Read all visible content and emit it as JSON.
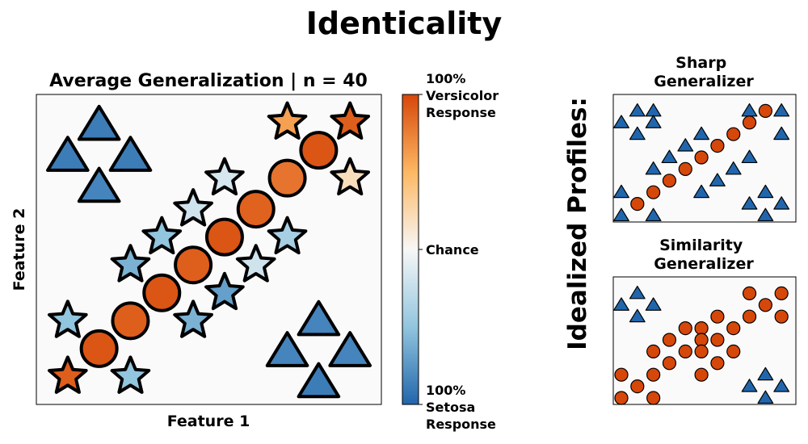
{
  "figure": {
    "title": "Identicality",
    "side_label": "Idealized Profiles:"
  },
  "colorbar": {
    "label_top": [
      "100%",
      "Versicolor",
      "Response"
    ],
    "label_mid": "Chance",
    "label_bottom": [
      "100%",
      "Setosa",
      "Response"
    ],
    "stops": [
      "#2166ac",
      "#92c5de",
      "#f7f7f7",
      "#fdb863",
      "#d6470a"
    ]
  },
  "chart_data": [
    {
      "type": "scatter",
      "title": "Average Generalization | n = 40",
      "xlabel": "Feature 1",
      "ylabel": "Feature 2",
      "xlim": [
        0,
        11
      ],
      "ylim": [
        0,
        10
      ],
      "value_range": [
        0,
        1
      ],
      "points": [
        {
          "shape": "triangle",
          "x": 2.0,
          "y": 9.0,
          "value": 0.06
        },
        {
          "shape": "triangle",
          "x": 1.0,
          "y": 8.0,
          "value": 0.06
        },
        {
          "shape": "triangle",
          "x": 3.0,
          "y": 8.0,
          "value": 0.06
        },
        {
          "shape": "triangle",
          "x": 2.0,
          "y": 7.0,
          "value": 0.08
        },
        {
          "shape": "triangle",
          "x": 9.0,
          "y": 2.7,
          "value": 0.08
        },
        {
          "shape": "triangle",
          "x": 8.0,
          "y": 1.7,
          "value": 0.08
        },
        {
          "shape": "triangle",
          "x": 10.0,
          "y": 1.7,
          "value": 0.08
        },
        {
          "shape": "triangle",
          "x": 9.0,
          "y": 0.7,
          "value": 0.06
        },
        {
          "shape": "circle",
          "x": 2.0,
          "y": 1.8,
          "value": 0.97
        },
        {
          "shape": "circle",
          "x": 3.0,
          "y": 2.7,
          "value": 0.95
        },
        {
          "shape": "circle",
          "x": 4.0,
          "y": 3.6,
          "value": 0.97
        },
        {
          "shape": "circle",
          "x": 5.0,
          "y": 4.5,
          "value": 0.95
        },
        {
          "shape": "circle",
          "x": 6.0,
          "y": 5.4,
          "value": 0.97
        },
        {
          "shape": "circle",
          "x": 7.0,
          "y": 6.3,
          "value": 0.94
        },
        {
          "shape": "circle",
          "x": 8.0,
          "y": 7.3,
          "value": 0.9
        },
        {
          "shape": "circle",
          "x": 9.0,
          "y": 8.2,
          "value": 0.97
        },
        {
          "shape": "star",
          "x": 1.0,
          "y": 0.9,
          "value": 0.95
        },
        {
          "shape": "star",
          "x": 3.0,
          "y": 0.9,
          "value": 0.25
        },
        {
          "shape": "star",
          "x": 1.0,
          "y": 2.7,
          "value": 0.25
        },
        {
          "shape": "star",
          "x": 5.0,
          "y": 2.7,
          "value": 0.2
        },
        {
          "shape": "star",
          "x": 6.0,
          "y": 3.6,
          "value": 0.15
        },
        {
          "shape": "star",
          "x": 3.0,
          "y": 4.5,
          "value": 0.2
        },
        {
          "shape": "star",
          "x": 7.0,
          "y": 4.5,
          "value": 0.4
        },
        {
          "shape": "star",
          "x": 4.0,
          "y": 5.4,
          "value": 0.25
        },
        {
          "shape": "star",
          "x": 8.0,
          "y": 5.4,
          "value": 0.3
        },
        {
          "shape": "star",
          "x": 5.0,
          "y": 6.3,
          "value": 0.4
        },
        {
          "shape": "star",
          "x": 6.0,
          "y": 7.3,
          "value": 0.42
        },
        {
          "shape": "star",
          "x": 10.0,
          "y": 7.3,
          "value": 0.6
        },
        {
          "shape": "star",
          "x": 8.0,
          "y": 9.1,
          "value": 0.8
        },
        {
          "shape": "star",
          "x": 10.0,
          "y": 9.1,
          "value": 0.95
        }
      ]
    },
    {
      "type": "scatter",
      "title": "Sharp Generalizer",
      "xlim": [
        0,
        11
      ],
      "ylim": [
        0,
        10
      ],
      "value_range": [
        0,
        1
      ],
      "points": [
        {
          "shape": "triangle",
          "x": 1,
          "y": 9,
          "value": 0
        },
        {
          "shape": "triangle",
          "x": 2,
          "y": 9,
          "value": 0
        },
        {
          "shape": "triangle",
          "x": 0,
          "y": 8,
          "value": 0
        },
        {
          "shape": "triangle",
          "x": 2,
          "y": 8,
          "value": 0
        },
        {
          "shape": "triangle",
          "x": 1,
          "y": 7,
          "value": 0
        },
        {
          "shape": "triangle",
          "x": 8,
          "y": 9,
          "value": 0
        },
        {
          "shape": "triangle",
          "x": 10,
          "y": 9,
          "value": 0
        },
        {
          "shape": "triangle",
          "x": 10,
          "y": 7,
          "value": 0
        },
        {
          "shape": "triangle",
          "x": 4,
          "y": 6,
          "value": 0
        },
        {
          "shape": "triangle",
          "x": 5,
          "y": 7,
          "value": 0
        },
        {
          "shape": "triangle",
          "x": 2,
          "y": 4,
          "value": 0
        },
        {
          "shape": "triangle",
          "x": 3,
          "y": 5,
          "value": 0
        },
        {
          "shape": "triangle",
          "x": 6,
          "y": 3,
          "value": 0
        },
        {
          "shape": "triangle",
          "x": 7,
          "y": 4,
          "value": 0
        },
        {
          "shape": "triangle",
          "x": 8,
          "y": 5,
          "value": 0
        },
        {
          "shape": "triangle",
          "x": 5,
          "y": 2,
          "value": 0
        },
        {
          "shape": "triangle",
          "x": 0,
          "y": 2,
          "value": 0
        },
        {
          "shape": "triangle",
          "x": 0,
          "y": 0,
          "value": 0
        },
        {
          "shape": "triangle",
          "x": 2,
          "y": 0,
          "value": 0
        },
        {
          "shape": "triangle",
          "x": 9,
          "y": 2,
          "value": 0
        },
        {
          "shape": "triangle",
          "x": 8,
          "y": 1,
          "value": 0
        },
        {
          "shape": "triangle",
          "x": 10,
          "y": 1,
          "value": 0
        },
        {
          "shape": "triangle",
          "x": 9,
          "y": 0,
          "value": 0
        },
        {
          "shape": "circle",
          "x": 1,
          "y": 1,
          "value": 1
        },
        {
          "shape": "circle",
          "x": 2,
          "y": 2,
          "value": 1
        },
        {
          "shape": "circle",
          "x": 3,
          "y": 3,
          "value": 1
        },
        {
          "shape": "circle",
          "x": 4,
          "y": 4,
          "value": 1
        },
        {
          "shape": "circle",
          "x": 5,
          "y": 5,
          "value": 1
        },
        {
          "shape": "circle",
          "x": 6,
          "y": 6,
          "value": 1
        },
        {
          "shape": "circle",
          "x": 7,
          "y": 7,
          "value": 1
        },
        {
          "shape": "circle",
          "x": 8,
          "y": 8,
          "value": 1
        },
        {
          "shape": "circle",
          "x": 9,
          "y": 9,
          "value": 1
        }
      ]
    },
    {
      "type": "scatter",
      "title": "Similarity Generalizer",
      "xlim": [
        0,
        11
      ],
      "ylim": [
        0,
        10
      ],
      "value_range": [
        0,
        1
      ],
      "points": [
        {
          "shape": "triangle",
          "x": 1,
          "y": 9,
          "value": 0
        },
        {
          "shape": "triangle",
          "x": 0,
          "y": 8,
          "value": 0
        },
        {
          "shape": "triangle",
          "x": 2,
          "y": 8,
          "value": 0
        },
        {
          "shape": "triangle",
          "x": 1,
          "y": 7,
          "value": 0
        },
        {
          "shape": "triangle",
          "x": 9,
          "y": 2,
          "value": 0
        },
        {
          "shape": "triangle",
          "x": 8,
          "y": 1,
          "value": 0
        },
        {
          "shape": "triangle",
          "x": 10,
          "y": 1,
          "value": 0
        },
        {
          "shape": "triangle",
          "x": 9,
          "y": 0,
          "value": 0
        },
        {
          "shape": "circle",
          "x": 8,
          "y": 9,
          "value": 1
        },
        {
          "shape": "circle",
          "x": 10,
          "y": 9,
          "value": 1
        },
        {
          "shape": "circle",
          "x": 9,
          "y": 8,
          "value": 1
        },
        {
          "shape": "circle",
          "x": 6,
          "y": 7,
          "value": 1
        },
        {
          "shape": "circle",
          "x": 8,
          "y": 7,
          "value": 1
        },
        {
          "shape": "circle",
          "x": 10,
          "y": 7,
          "value": 1
        },
        {
          "shape": "circle",
          "x": 4,
          "y": 6,
          "value": 1
        },
        {
          "shape": "circle",
          "x": 5,
          "y": 6,
          "value": 1
        },
        {
          "shape": "circle",
          "x": 7,
          "y": 6,
          "value": 1
        },
        {
          "shape": "circle",
          "x": 3,
          "y": 5,
          "value": 1
        },
        {
          "shape": "circle",
          "x": 5,
          "y": 5,
          "value": 1
        },
        {
          "shape": "circle",
          "x": 6,
          "y": 5,
          "value": 1
        },
        {
          "shape": "circle",
          "x": 2,
          "y": 4,
          "value": 1
        },
        {
          "shape": "circle",
          "x": 4,
          "y": 4,
          "value": 1
        },
        {
          "shape": "circle",
          "x": 5,
          "y": 4,
          "value": 1
        },
        {
          "shape": "circle",
          "x": 7,
          "y": 4,
          "value": 1
        },
        {
          "shape": "circle",
          "x": 3,
          "y": 3,
          "value": 1
        },
        {
          "shape": "circle",
          "x": 6,
          "y": 3,
          "value": 1
        },
        {
          "shape": "circle",
          "x": 0,
          "y": 2,
          "value": 1
        },
        {
          "shape": "circle",
          "x": 2,
          "y": 2,
          "value": 1
        },
        {
          "shape": "circle",
          "x": 5,
          "y": 2,
          "value": 1
        },
        {
          "shape": "circle",
          "x": 1,
          "y": 1,
          "value": 1
        },
        {
          "shape": "circle",
          "x": 0,
          "y": 0,
          "value": 1
        },
        {
          "shape": "circle",
          "x": 2,
          "y": 0,
          "value": 1
        }
      ]
    }
  ]
}
